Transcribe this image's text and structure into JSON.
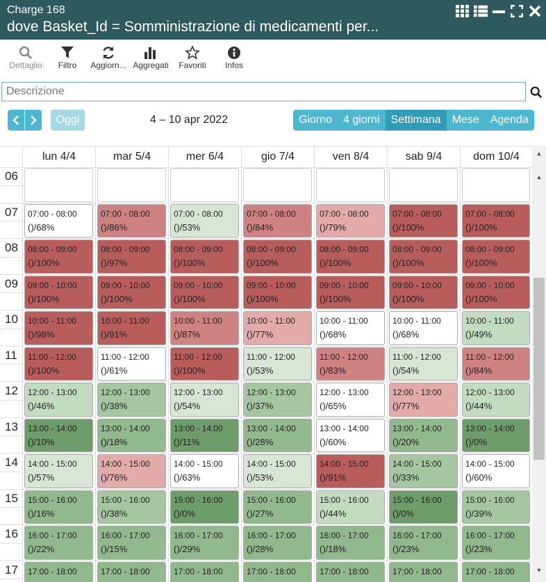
{
  "window": {
    "title_line1": "Charge 168",
    "title_line2": "dove Basket_Id = Somministrazione di medicamenti per..."
  },
  "toolbar": [
    {
      "label": "Dettaglio",
      "icon": "search-icon",
      "disabled": true
    },
    {
      "label": "Filtro",
      "icon": "filter-icon",
      "disabled": false
    },
    {
      "label": "Aggiorn...",
      "icon": "refresh-icon",
      "disabled": false
    },
    {
      "label": "Aggregati",
      "icon": "bar-chart-icon",
      "disabled": false
    },
    {
      "label": "Favoriti",
      "icon": "star-icon",
      "disabled": false
    },
    {
      "label": "Infos",
      "icon": "info-icon",
      "disabled": false
    }
  ],
  "search": {
    "placeholder": "Descrizione",
    "value": ""
  },
  "nav": {
    "today": "Oggi",
    "range": "4 – 10 apr 2022"
  },
  "views": [
    {
      "label": "Giorno",
      "active": false
    },
    {
      "label": "4 giorni",
      "active": false
    },
    {
      "label": "Settimana",
      "active": true
    },
    {
      "label": "Mese",
      "active": false
    },
    {
      "label": "Agenda",
      "active": false
    }
  ],
  "days": [
    "lun 4/4",
    "mar 5/4",
    "mer 6/4",
    "gio 7/4",
    "ven 8/4",
    "sab 9/4",
    "dom 10/4"
  ],
  "hours": [
    "06",
    "07",
    "08",
    "09",
    "10",
    "11",
    "12",
    "13",
    "14",
    "15",
    "16",
    "17"
  ],
  "colors": {
    "white": "#ffffff",
    "red_dark": "#b85c5c",
    "red_mid": "#cf8282",
    "red_light": "#e3aaaa",
    "green_pale": "#d7e6d5",
    "green_light": "#c3dbc1",
    "green_mid": "#a6c6a2",
    "green": "#92b88e",
    "green_dark": "#6e9c6a"
  },
  "events": [
    {
      "day": 0,
      "hour": 1,
      "time": "07:00 - 08:00",
      "label": "()/68%",
      "c": "white"
    },
    {
      "day": 1,
      "hour": 1,
      "time": "07:00 - 08:00",
      "label": "()/86%",
      "c": "red_mid"
    },
    {
      "day": 2,
      "hour": 1,
      "time": "07:00 - 08:00",
      "label": "()/53%",
      "c": "green_pale"
    },
    {
      "day": 3,
      "hour": 1,
      "time": "07:00 - 08:00",
      "label": "()/84%",
      "c": "red_mid"
    },
    {
      "day": 4,
      "hour": 1,
      "time": "07:00 - 08:00",
      "label": "()/79%",
      "c": "red_light"
    },
    {
      "day": 5,
      "hour": 1,
      "time": "07:00 - 08:00",
      "label": "()/100%",
      "c": "red_dark"
    },
    {
      "day": 6,
      "hour": 1,
      "time": "07:00 - 08:00",
      "label": "()/100%",
      "c": "red_dark"
    },
    {
      "day": 0,
      "hour": 2,
      "time": "08:00 - 09:00",
      "label": "()/100%",
      "c": "red_dark"
    },
    {
      "day": 1,
      "hour": 2,
      "time": "08:00 - 09:00",
      "label": "()/97%",
      "c": "red_dark"
    },
    {
      "day": 2,
      "hour": 2,
      "time": "08:00 - 09:00",
      "label": "()/100%",
      "c": "red_dark"
    },
    {
      "day": 3,
      "hour": 2,
      "time": "08:00 - 09:00",
      "label": "()/100%",
      "c": "red_dark"
    },
    {
      "day": 4,
      "hour": 2,
      "time": "08:00 - 09:00",
      "label": "()/100%",
      "c": "red_dark"
    },
    {
      "day": 5,
      "hour": 2,
      "time": "08:00 - 09:00",
      "label": "()/100%",
      "c": "red_dark"
    },
    {
      "day": 6,
      "hour": 2,
      "time": "08:00 - 09:00",
      "label": "()/100%",
      "c": "red_dark"
    },
    {
      "day": 0,
      "hour": 3,
      "time": "09:00 - 10:00",
      "label": "()/100%",
      "c": "red_dark"
    },
    {
      "day": 1,
      "hour": 3,
      "time": "09:00 - 10:00",
      "label": "()/100%",
      "c": "red_dark"
    },
    {
      "day": 2,
      "hour": 3,
      "time": "09:00 - 10:00",
      "label": "()/100%",
      "c": "red_dark"
    },
    {
      "day": 3,
      "hour": 3,
      "time": "09:00 - 10:00",
      "label": "()/100%",
      "c": "red_dark"
    },
    {
      "day": 4,
      "hour": 3,
      "time": "09:00 - 10:00",
      "label": "()/100%",
      "c": "red_dark"
    },
    {
      "day": 5,
      "hour": 3,
      "time": "09:00 - 10:00",
      "label": "()/100%",
      "c": "red_dark"
    },
    {
      "day": 6,
      "hour": 3,
      "time": "09:00 - 10:00",
      "label": "()/100%",
      "c": "red_dark"
    },
    {
      "day": 0,
      "hour": 4,
      "time": "10:00 - 11:00",
      "label": "()/98%",
      "c": "red_dark"
    },
    {
      "day": 1,
      "hour": 4,
      "time": "10:00 - 11:00",
      "label": "()/91%",
      "c": "red_dark"
    },
    {
      "day": 2,
      "hour": 4,
      "time": "10:00 - 11:00",
      "label": "()/87%",
      "c": "red_mid"
    },
    {
      "day": 3,
      "hour": 4,
      "time": "10:00 - 11:00",
      "label": "()/77%",
      "c": "red_light"
    },
    {
      "day": 4,
      "hour": 4,
      "time": "10:00 - 11:00",
      "label": "()/68%",
      "c": "white"
    },
    {
      "day": 5,
      "hour": 4,
      "time": "10:00 - 11:00",
      "label": "()/68%",
      "c": "white"
    },
    {
      "day": 6,
      "hour": 4,
      "time": "10:00 - 11:00",
      "label": "()/49%",
      "c": "green_light"
    },
    {
      "day": 0,
      "hour": 5,
      "time": "11:00 - 12:00",
      "label": "()/100%",
      "c": "red_dark"
    },
    {
      "day": 1,
      "hour": 5,
      "time": "11:00 - 12:00",
      "label": "()/61%",
      "c": "white"
    },
    {
      "day": 2,
      "hour": 5,
      "time": "11:00 - 12:00",
      "label": "()/100%",
      "c": "red_dark"
    },
    {
      "day": 3,
      "hour": 5,
      "time": "11:00 - 12:00",
      "label": "()/53%",
      "c": "green_pale"
    },
    {
      "day": 4,
      "hour": 5,
      "time": "11:00 - 12:00",
      "label": "()/83%",
      "c": "red_mid"
    },
    {
      "day": 5,
      "hour": 5,
      "time": "11:00 - 12:00",
      "label": "()/54%",
      "c": "green_pale"
    },
    {
      "day": 6,
      "hour": 5,
      "time": "11:00 - 12:00",
      "label": "()/84%",
      "c": "red_mid"
    },
    {
      "day": 0,
      "hour": 6,
      "time": "12:00 - 13:00",
      "label": "()/46%",
      "c": "green_light"
    },
    {
      "day": 1,
      "hour": 6,
      "time": "12:00 - 13:00",
      "label": "()/38%",
      "c": "green_mid"
    },
    {
      "day": 2,
      "hour": 6,
      "time": "12:00 - 13:00",
      "label": "()/54%",
      "c": "green_pale"
    },
    {
      "day": 3,
      "hour": 6,
      "time": "12:00 - 13:00",
      "label": "()/37%",
      "c": "green_mid"
    },
    {
      "day": 4,
      "hour": 6,
      "time": "12:00 - 13:00",
      "label": "()/65%",
      "c": "white"
    },
    {
      "day": 5,
      "hour": 6,
      "time": "12:00 - 13:00",
      "label": "()/77%",
      "c": "red_light"
    },
    {
      "day": 6,
      "hour": 6,
      "time": "12:00 - 13:00",
      "label": "()/44%",
      "c": "green_light"
    },
    {
      "day": 0,
      "hour": 7,
      "time": "13:00 - 14:00",
      "label": "()/10%",
      "c": "green_dark"
    },
    {
      "day": 1,
      "hour": 7,
      "time": "13:00 - 14:00",
      "label": "()/18%",
      "c": "green"
    },
    {
      "day": 2,
      "hour": 7,
      "time": "13:00 - 14:00",
      "label": "()/11%",
      "c": "green_dark"
    },
    {
      "day": 3,
      "hour": 7,
      "time": "13:00 - 14:00",
      "label": "()/28%",
      "c": "green"
    },
    {
      "day": 4,
      "hour": 7,
      "time": "13:00 - 14:00",
      "label": "()/60%",
      "c": "white"
    },
    {
      "day": 5,
      "hour": 7,
      "time": "13:00 - 14:00",
      "label": "()/20%",
      "c": "green"
    },
    {
      "day": 6,
      "hour": 7,
      "time": "13:00 - 14:00",
      "label": "()/0%",
      "c": "green_dark"
    },
    {
      "day": 0,
      "hour": 8,
      "time": "14:00 - 15:00",
      "label": "()/57%",
      "c": "green_pale"
    },
    {
      "day": 1,
      "hour": 8,
      "time": "14:00 - 15:00",
      "label": "()/76%",
      "c": "red_light"
    },
    {
      "day": 2,
      "hour": 8,
      "time": "14:00 - 15:00",
      "label": "()/63%",
      "c": "white"
    },
    {
      "day": 3,
      "hour": 8,
      "time": "14:00 - 15:00",
      "label": "()/53%",
      "c": "green_pale"
    },
    {
      "day": 4,
      "hour": 8,
      "time": "14:00 - 15:00",
      "label": "()/91%",
      "c": "red_dark"
    },
    {
      "day": 5,
      "hour": 8,
      "time": "14:00 - 15:00",
      "label": "()/33%",
      "c": "green_mid"
    },
    {
      "day": 6,
      "hour": 8,
      "time": "14:00 - 15:00",
      "label": "()/60%",
      "c": "white"
    },
    {
      "day": 0,
      "hour": 9,
      "time": "15:00 - 16:00",
      "label": "()/16%",
      "c": "green"
    },
    {
      "day": 1,
      "hour": 9,
      "time": "15:00 - 16:00",
      "label": "()/38%",
      "c": "green_mid"
    },
    {
      "day": 2,
      "hour": 9,
      "time": "15:00 - 16:00",
      "label": "()/0%",
      "c": "green_dark"
    },
    {
      "day": 3,
      "hour": 9,
      "time": "15:00 - 16:00",
      "label": "()/27%",
      "c": "green"
    },
    {
      "day": 4,
      "hour": 9,
      "time": "15:00 - 16:00",
      "label": "()/44%",
      "c": "green_light"
    },
    {
      "day": 5,
      "hour": 9,
      "time": "15:00 - 16:00",
      "label": "()/0%",
      "c": "green_dark"
    },
    {
      "day": 6,
      "hour": 9,
      "time": "15:00 - 16:00",
      "label": "()/39%",
      "c": "green_mid"
    },
    {
      "day": 0,
      "hour": 10,
      "time": "16:00 - 17:00",
      "label": "()/22%",
      "c": "green"
    },
    {
      "day": 1,
      "hour": 10,
      "time": "16:00 - 17:00",
      "label": "()/15%",
      "c": "green"
    },
    {
      "day": 2,
      "hour": 10,
      "time": "16:00 - 17:00",
      "label": "()/29%",
      "c": "green"
    },
    {
      "day": 3,
      "hour": 10,
      "time": "16:00 - 17:00",
      "label": "()/28%",
      "c": "green"
    },
    {
      "day": 4,
      "hour": 10,
      "time": "16:00 - 17:00",
      "label": "()/18%",
      "c": "green"
    },
    {
      "day": 5,
      "hour": 10,
      "time": "16:00 - 17:00",
      "label": "()/23%",
      "c": "green"
    },
    {
      "day": 6,
      "hour": 10,
      "time": "16:00 - 17:00",
      "label": "()/23%",
      "c": "green"
    },
    {
      "day": 0,
      "hour": 11,
      "time": "17:00 - 18:00",
      "label": "",
      "c": "green"
    },
    {
      "day": 1,
      "hour": 11,
      "time": "17:00 - 18:00",
      "label": "",
      "c": "green"
    },
    {
      "day": 2,
      "hour": 11,
      "time": "17:00 - 18:00",
      "label": "",
      "c": "green"
    },
    {
      "day": 3,
      "hour": 11,
      "time": "17:00 - 18:00",
      "label": "",
      "c": "green"
    },
    {
      "day": 4,
      "hour": 11,
      "time": "17:00 - 18:00",
      "label": "",
      "c": "green"
    },
    {
      "day": 5,
      "hour": 11,
      "time": "17:00 - 18:00",
      "label": "",
      "c": "green"
    },
    {
      "day": 6,
      "hour": 11,
      "time": "17:00 - 18:00",
      "label": "",
      "c": "green"
    }
  ]
}
